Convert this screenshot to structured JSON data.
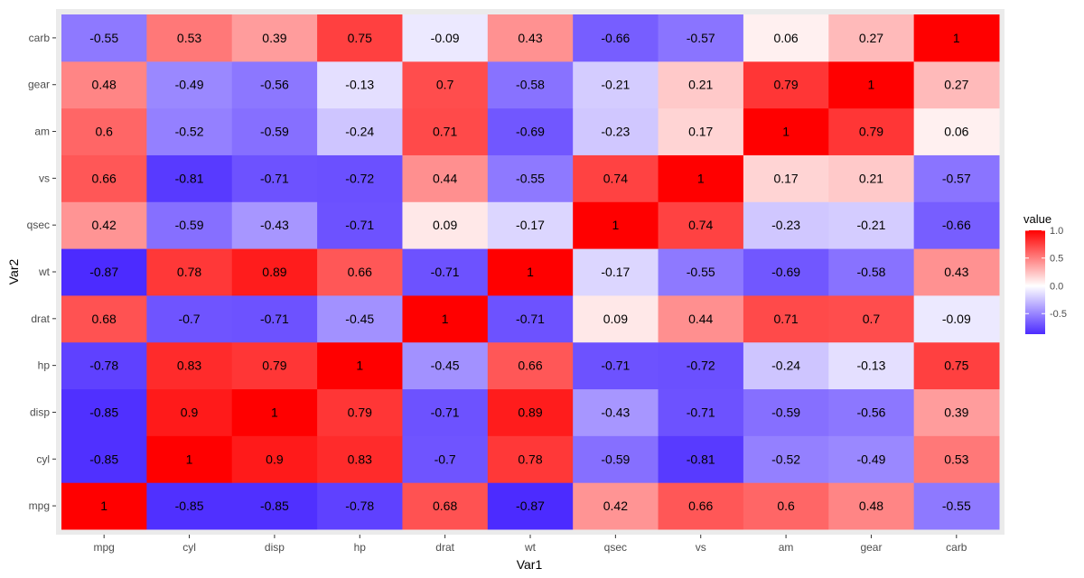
{
  "chart_data": {
    "type": "heatmap",
    "xlabel": "Var1",
    "ylabel": "Var2",
    "x_categories": [
      "mpg",
      "cyl",
      "disp",
      "hp",
      "drat",
      "wt",
      "qsec",
      "vs",
      "am",
      "gear",
      "carb"
    ],
    "y_categories": [
      "mpg",
      "cyl",
      "disp",
      "hp",
      "drat",
      "wt",
      "qsec",
      "vs",
      "am",
      "gear",
      "carb"
    ],
    "values": [
      [
        1,
        -0.85,
        -0.85,
        -0.78,
        0.68,
        -0.87,
        0.42,
        0.66,
        0.6,
        0.48,
        -0.55
      ],
      [
        -0.85,
        1,
        0.9,
        0.83,
        -0.7,
        0.78,
        -0.59,
        -0.81,
        -0.52,
        -0.49,
        0.53
      ],
      [
        -0.85,
        0.9,
        1,
        0.79,
        -0.71,
        0.89,
        -0.43,
        -0.71,
        -0.59,
        -0.56,
        0.39
      ],
      [
        -0.78,
        0.83,
        0.79,
        1,
        -0.45,
        0.66,
        -0.71,
        -0.72,
        -0.24,
        -0.13,
        0.75
      ],
      [
        0.68,
        -0.7,
        -0.71,
        -0.45,
        1,
        -0.71,
        0.09,
        0.44,
        0.71,
        0.7,
        -0.09
      ],
      [
        -0.87,
        0.78,
        0.89,
        0.66,
        -0.71,
        1,
        -0.17,
        -0.55,
        -0.69,
        -0.58,
        0.43
      ],
      [
        0.42,
        -0.59,
        -0.43,
        -0.71,
        0.09,
        -0.17,
        1,
        0.74,
        -0.23,
        -0.21,
        -0.66
      ],
      [
        0.66,
        -0.81,
        -0.71,
        -0.72,
        0.44,
        -0.55,
        0.74,
        1,
        0.17,
        0.21,
        -0.57
      ],
      [
        0.6,
        -0.52,
        -0.59,
        -0.24,
        0.71,
        -0.69,
        -0.23,
        0.17,
        1,
        0.79,
        0.06
      ],
      [
        0.48,
        -0.49,
        -0.56,
        -0.13,
        0.7,
        -0.58,
        -0.21,
        0.21,
        0.79,
        1,
        0.27
      ],
      [
        -0.55,
        0.53,
        0.39,
        0.75,
        -0.09,
        0.43,
        -0.66,
        -0.57,
        0.06,
        0.27,
        1
      ]
    ],
    "legend": {
      "title": "value",
      "ticks": [
        1.0,
        0.5,
        0.0,
        -0.5
      ],
      "tick_labels": [
        "1.0",
        "0.5",
        "0.0",
        "-0.5"
      ],
      "range": [
        -0.87,
        1.0
      ],
      "placement": "right"
    },
    "colors": {
      "low": "#4c2bff",
      "mid": "#ffffff",
      "high": "#ff0000",
      "panel_background": "#ebebeb"
    },
    "grid": false
  }
}
